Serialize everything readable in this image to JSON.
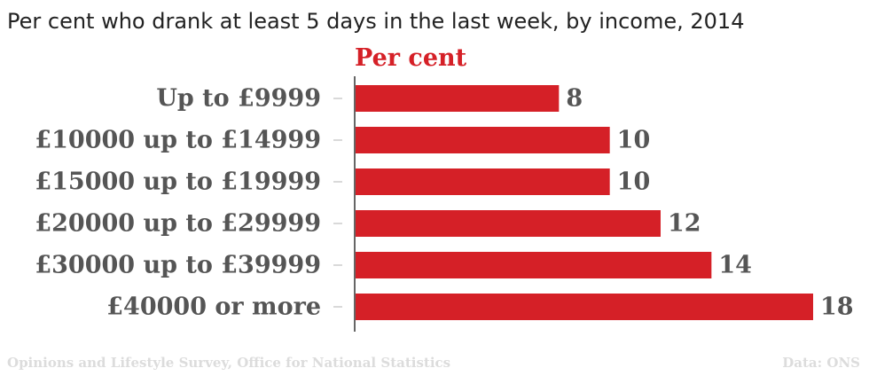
{
  "title": "Per cent who drank at least 5 days in the last week, by income, 2014",
  "footer": {
    "source": "Opinions and Lifestyle Survey, Office for National Statistics",
    "credit": "Data: ONS"
  },
  "colors": {
    "bar": "#d52027",
    "label": "#555555",
    "title": "#222222",
    "footer": "#dcdcdc"
  },
  "chart_data": {
    "type": "bar",
    "orientation": "horizontal",
    "title": "Per cent who drank at least 5 days in the last week, by income, 2014",
    "value_axis_label": "Per cent",
    "categories": [
      "Up to £9999",
      "£10000 up to £14999",
      "£15000 up to £19999",
      "£20000 up to £29999",
      "£30000 up to £39999",
      "£40000 or more"
    ],
    "values": [
      8,
      10,
      10,
      12,
      14,
      18
    ],
    "xlim": [
      0,
      18
    ],
    "grid": false,
    "legend": "none"
  }
}
